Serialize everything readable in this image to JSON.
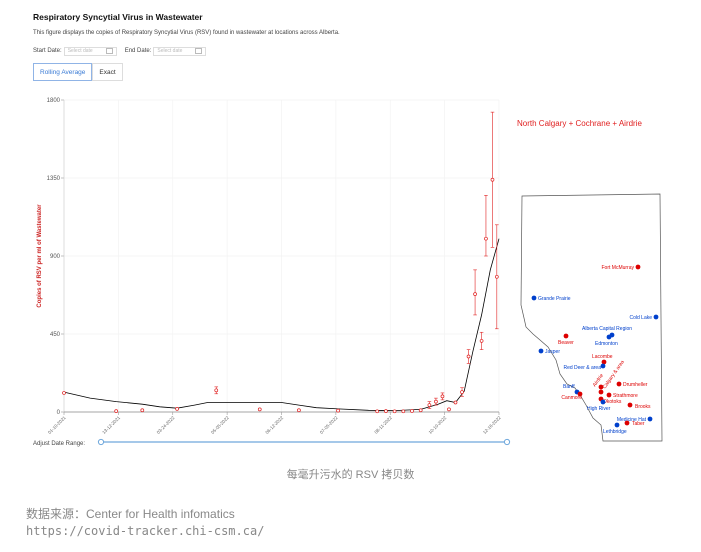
{
  "header": {
    "title": "Respiratory Syncytial Virus in Wastewater",
    "description": "This figure displays the copies of Respiratory Syncytial Virus (RSV) found in wastewater at locations across Alberta."
  },
  "filters": {
    "start_label": "Start Date:",
    "start_placeholder": "Select date",
    "end_label": "End Date:",
    "end_placeholder": "Select date"
  },
  "tabs": [
    {
      "label": "Rolling Average",
      "active": true
    },
    {
      "label": "Exact",
      "active": false
    }
  ],
  "range": {
    "label": "Adjust Date Range:"
  },
  "colors": {
    "points": "#e02020",
    "line": "#000000",
    "map_red": "#dd0000",
    "map_blue": "#0040cc",
    "slider": "#6fa8dc"
  },
  "chart_data": {
    "type": "scatter",
    "series_label": "North Calgary + Cochrane + Airdrie",
    "ylabel": "Copies of RSV per ml of Wastewater",
    "ylim": [
      0,
      1800
    ],
    "yticks": [
      "0",
      "450",
      "900",
      "1350",
      "1800"
    ],
    "grid": true,
    "xtick_labels": [
      "01-10-2021",
      "13-12-2021",
      "03-24-2022",
      "05-05-2022",
      "06-12-2022",
      "07-05-2022",
      "08-11-2022",
      "10-10-2022",
      "12-16-2022"
    ],
    "points": [
      {
        "x": 0.0,
        "y": 110
      },
      {
        "x": 0.12,
        "y": 5
      },
      {
        "x": 0.18,
        "y": 10
      },
      {
        "x": 0.26,
        "y": 18
      },
      {
        "x": 0.35,
        "y": 125,
        "err": [
          105,
          145
        ]
      },
      {
        "x": 0.45,
        "y": 15
      },
      {
        "x": 0.54,
        "y": 10
      },
      {
        "x": 0.63,
        "y": 8
      },
      {
        "x": 0.72,
        "y": 4
      },
      {
        "x": 0.74,
        "y": 5
      },
      {
        "x": 0.76,
        "y": 4
      },
      {
        "x": 0.78,
        "y": 4
      },
      {
        "x": 0.8,
        "y": 6
      },
      {
        "x": 0.82,
        "y": 10
      },
      {
        "x": 0.84,
        "y": 40,
        "err": [
          20,
          60
        ]
      },
      {
        "x": 0.855,
        "y": 60,
        "err": [
          40,
          80
        ]
      },
      {
        "x": 0.87,
        "y": 90,
        "err": [
          70,
          110
        ]
      },
      {
        "x": 0.885,
        "y": 15
      },
      {
        "x": 0.9,
        "y": 55
      },
      {
        "x": 0.915,
        "y": 115,
        "err": [
          90,
          140
        ]
      },
      {
        "x": 0.93,
        "y": 320,
        "err": [
          280,
          360
        ]
      },
      {
        "x": 0.945,
        "y": 680,
        "err": [
          560,
          820
        ]
      },
      {
        "x": 0.96,
        "y": 410,
        "err": [
          360,
          460
        ]
      },
      {
        "x": 0.97,
        "y": 1000,
        "err": [
          900,
          1250
        ]
      },
      {
        "x": 0.985,
        "y": 1340,
        "err": [
          950,
          1730
        ]
      },
      {
        "x": 0.995,
        "y": 780,
        "err": [
          480,
          1080
        ]
      }
    ],
    "rolling_average": [
      {
        "x": 0.0,
        "y": 115
      },
      {
        "x": 0.06,
        "y": 80
      },
      {
        "x": 0.12,
        "y": 60
      },
      {
        "x": 0.18,
        "y": 45
      },
      {
        "x": 0.22,
        "y": 30
      },
      {
        "x": 0.26,
        "y": 22
      },
      {
        "x": 0.3,
        "y": 40
      },
      {
        "x": 0.33,
        "y": 55
      },
      {
        "x": 0.4,
        "y": 55
      },
      {
        "x": 0.5,
        "y": 55
      },
      {
        "x": 0.54,
        "y": 40
      },
      {
        "x": 0.58,
        "y": 25
      },
      {
        "x": 0.63,
        "y": 18
      },
      {
        "x": 0.7,
        "y": 10
      },
      {
        "x": 0.76,
        "y": 8
      },
      {
        "x": 0.82,
        "y": 15
      },
      {
        "x": 0.86,
        "y": 45
      },
      {
        "x": 0.88,
        "y": 65
      },
      {
        "x": 0.9,
        "y": 55
      },
      {
        "x": 0.92,
        "y": 120
      },
      {
        "x": 0.94,
        "y": 350
      },
      {
        "x": 0.96,
        "y": 560
      },
      {
        "x": 0.98,
        "y": 820
      },
      {
        "x": 1.0,
        "y": 1000
      }
    ]
  },
  "map": {
    "locations": [
      {
        "name": "Fort McMurray",
        "color": "red"
      },
      {
        "name": "Grande Prairie",
        "color": "blue"
      },
      {
        "name": "Cold Lake",
        "color": "blue"
      },
      {
        "name": "Alberta Capital Region",
        "color": "blue"
      },
      {
        "name": "Edmonton",
        "color": "blue"
      },
      {
        "name": "Beaver",
        "color": "red"
      },
      {
        "name": "Jasper",
        "color": "blue"
      },
      {
        "name": "Lacombe",
        "color": "red"
      },
      {
        "name": "Red Deer & area",
        "color": "blue"
      },
      {
        "name": "Banff",
        "color": "blue"
      },
      {
        "name": "Canmore",
        "color": "red"
      },
      {
        "name": "Airdrie",
        "color": "red"
      },
      {
        "name": "Calgary & area",
        "color": "red"
      },
      {
        "name": "Drumheller",
        "color": "red"
      },
      {
        "name": "Strathmore",
        "color": "red"
      },
      {
        "name": "Okotoks",
        "color": "red"
      },
      {
        "name": "High River",
        "color": "blue"
      },
      {
        "name": "Brooks",
        "color": "red"
      },
      {
        "name": "Medicine Hat",
        "color": "blue"
      },
      {
        "name": "Taber",
        "color": "red"
      },
      {
        "name": "Lethbridge",
        "color": "blue"
      }
    ]
  },
  "caption": "每毫升污水的 RSV 拷贝数",
  "source": {
    "line1": "数据来源：Center for Health infomatics",
    "line2": "https://covid-tracker.chi-csm.ca/"
  }
}
